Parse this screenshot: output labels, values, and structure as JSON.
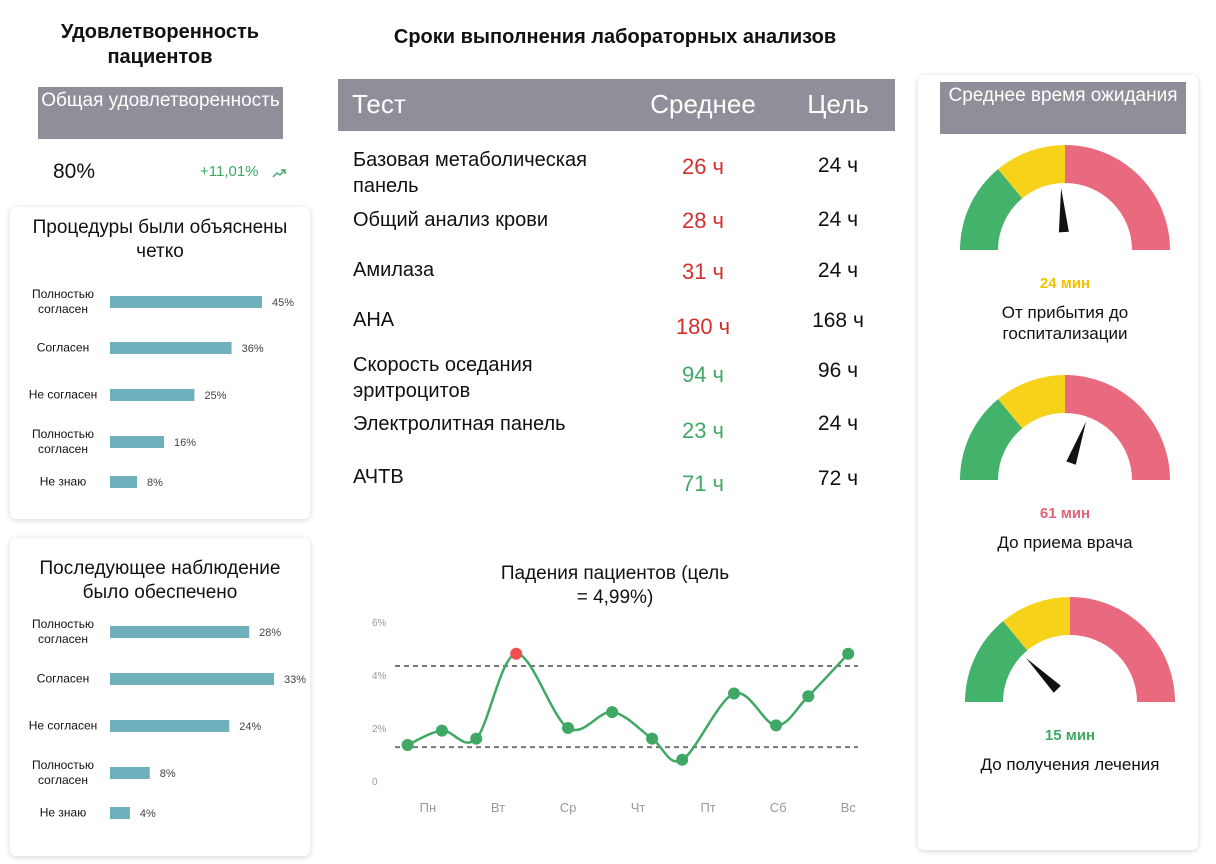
{
  "satisfaction": {
    "title": "Удовлетворенность пациентов",
    "box_title": "Общая удовлетворенность",
    "value": "80%",
    "change": "+11,01%"
  },
  "lab": {
    "title": "Сроки выполнения лабораторных анализов",
    "header": [
      "Тест",
      "Среднее",
      "Цель"
    ],
    "rows": [
      {
        "test": "Базовая метаболическая панель",
        "average": "26 ч",
        "target": "24 ч",
        "color": "#d32f2f"
      },
      {
        "test": "Общий анализ крови",
        "average": "28 ч",
        "target": "24 ч",
        "color": "#d32f2f"
      },
      {
        "test": "Амилаза",
        "average": "31 ч",
        "target": "24 ч",
        "color": "#d32f2f"
      },
      {
        "test": "АНА",
        "average": "180 ч",
        "target": "168 ч",
        "color": "#d32f2f"
      },
      {
        "test": "Скорость оседания эритроцитов",
        "average": "94 ч",
        "target": "96 ч",
        "color": "#3fa865"
      },
      {
        "test": "Электролитная панель",
        "average": "23 ч",
        "target": "24 ч",
        "color": "#3fa865"
      },
      {
        "test": "АЧТВ",
        "average": "71 ч",
        "target": "72 ч",
        "color": "#3fa865"
      }
    ]
  },
  "wait": {
    "title": "Среднее время ожидания",
    "gauges": [
      {
        "label": "От прибытия до госпитализации",
        "value": 24,
        "value_label": "24 мин",
        "range": [
          0,
          50
        ],
        "color": "#f2c200"
      },
      {
        "label": "До приема врача",
        "value": 61,
        "value_label": "61 мин",
        "range": [
          0,
          100
        ],
        "color": "#e06377"
      },
      {
        "label": "До получения лечения",
        "value": 15,
        "value_label": "15 мин",
        "range": [
          0,
          60
        ],
        "color": "#3fa865"
      }
    ]
  },
  "chart_data": [
    {
      "type": "hbar",
      "title": "Процедуры были объяснены четко",
      "categories": [
        "Полностью согласен",
        "Согласен",
        "Не согласен",
        "Полностью согласен",
        "Не знаю"
      ],
      "values": [
        45,
        36,
        25,
        16,
        8
      ],
      "value_labels": [
        "45%",
        "36%",
        "25%",
        "16%",
        "8%"
      ],
      "color": "#6fb0bd"
    },
    {
      "type": "hbar",
      "title": "Последующее наблюдение было обеспечено",
      "categories": [
        "Полностью согласен",
        "Согласен",
        "Не согласен",
        "Полностью согласен",
        "Не знаю"
      ],
      "values": [
        28,
        33,
        24,
        8,
        4
      ],
      "value_labels": [
        "28%",
        "33%",
        "24%",
        "8%",
        "4%"
      ],
      "color": "#6fb0bd"
    },
    {
      "type": "line",
      "title": "Падения пациентов (цель = 4,99%)",
      "x": [
        -0.29,
        0.2,
        0.69,
        1.26,
        2,
        2.63,
        3.2,
        3.63,
        4.37,
        4.97,
        5.43,
        6
      ],
      "values": [
        1.36,
        1.9,
        1.6,
        4.8,
        2.0,
        2.6,
        1.6,
        0.8,
        3.3,
        2.1,
        3.2,
        4.8
      ],
      "point_colors": [
        "#3fa865",
        "#3fa865",
        "#3fa865",
        "#ef4f4f",
        "#3fa865",
        "#3fa865",
        "#3fa865",
        "#3fa865",
        "#3fa865",
        "#3fa865",
        "#3fa865",
        "#3fa865"
      ],
      "color": "#3fa865",
      "xlim": [
        -0.47,
        6.14
      ],
      "xticks": [
        {
          "value": 0,
          "label": "Пн"
        },
        {
          "value": 1,
          "label": "Вт"
        },
        {
          "value": 2,
          "label": "Ср"
        },
        {
          "value": 3,
          "label": "Чт"
        },
        {
          "value": 4,
          "label": "Пт"
        },
        {
          "value": 5,
          "label": "Сб"
        },
        {
          "value": 6,
          "label": "Вс"
        }
      ],
      "ylim": [
        0,
        6
      ],
      "yticks": [
        0,
        {
          "value": 2,
          "label": "2%"
        },
        {
          "value": 4,
          "label": "4%"
        },
        {
          "value": 6,
          "label": "6%"
        }
      ],
      "reference_lines": [
        4.34,
        1.28
      ]
    }
  ]
}
